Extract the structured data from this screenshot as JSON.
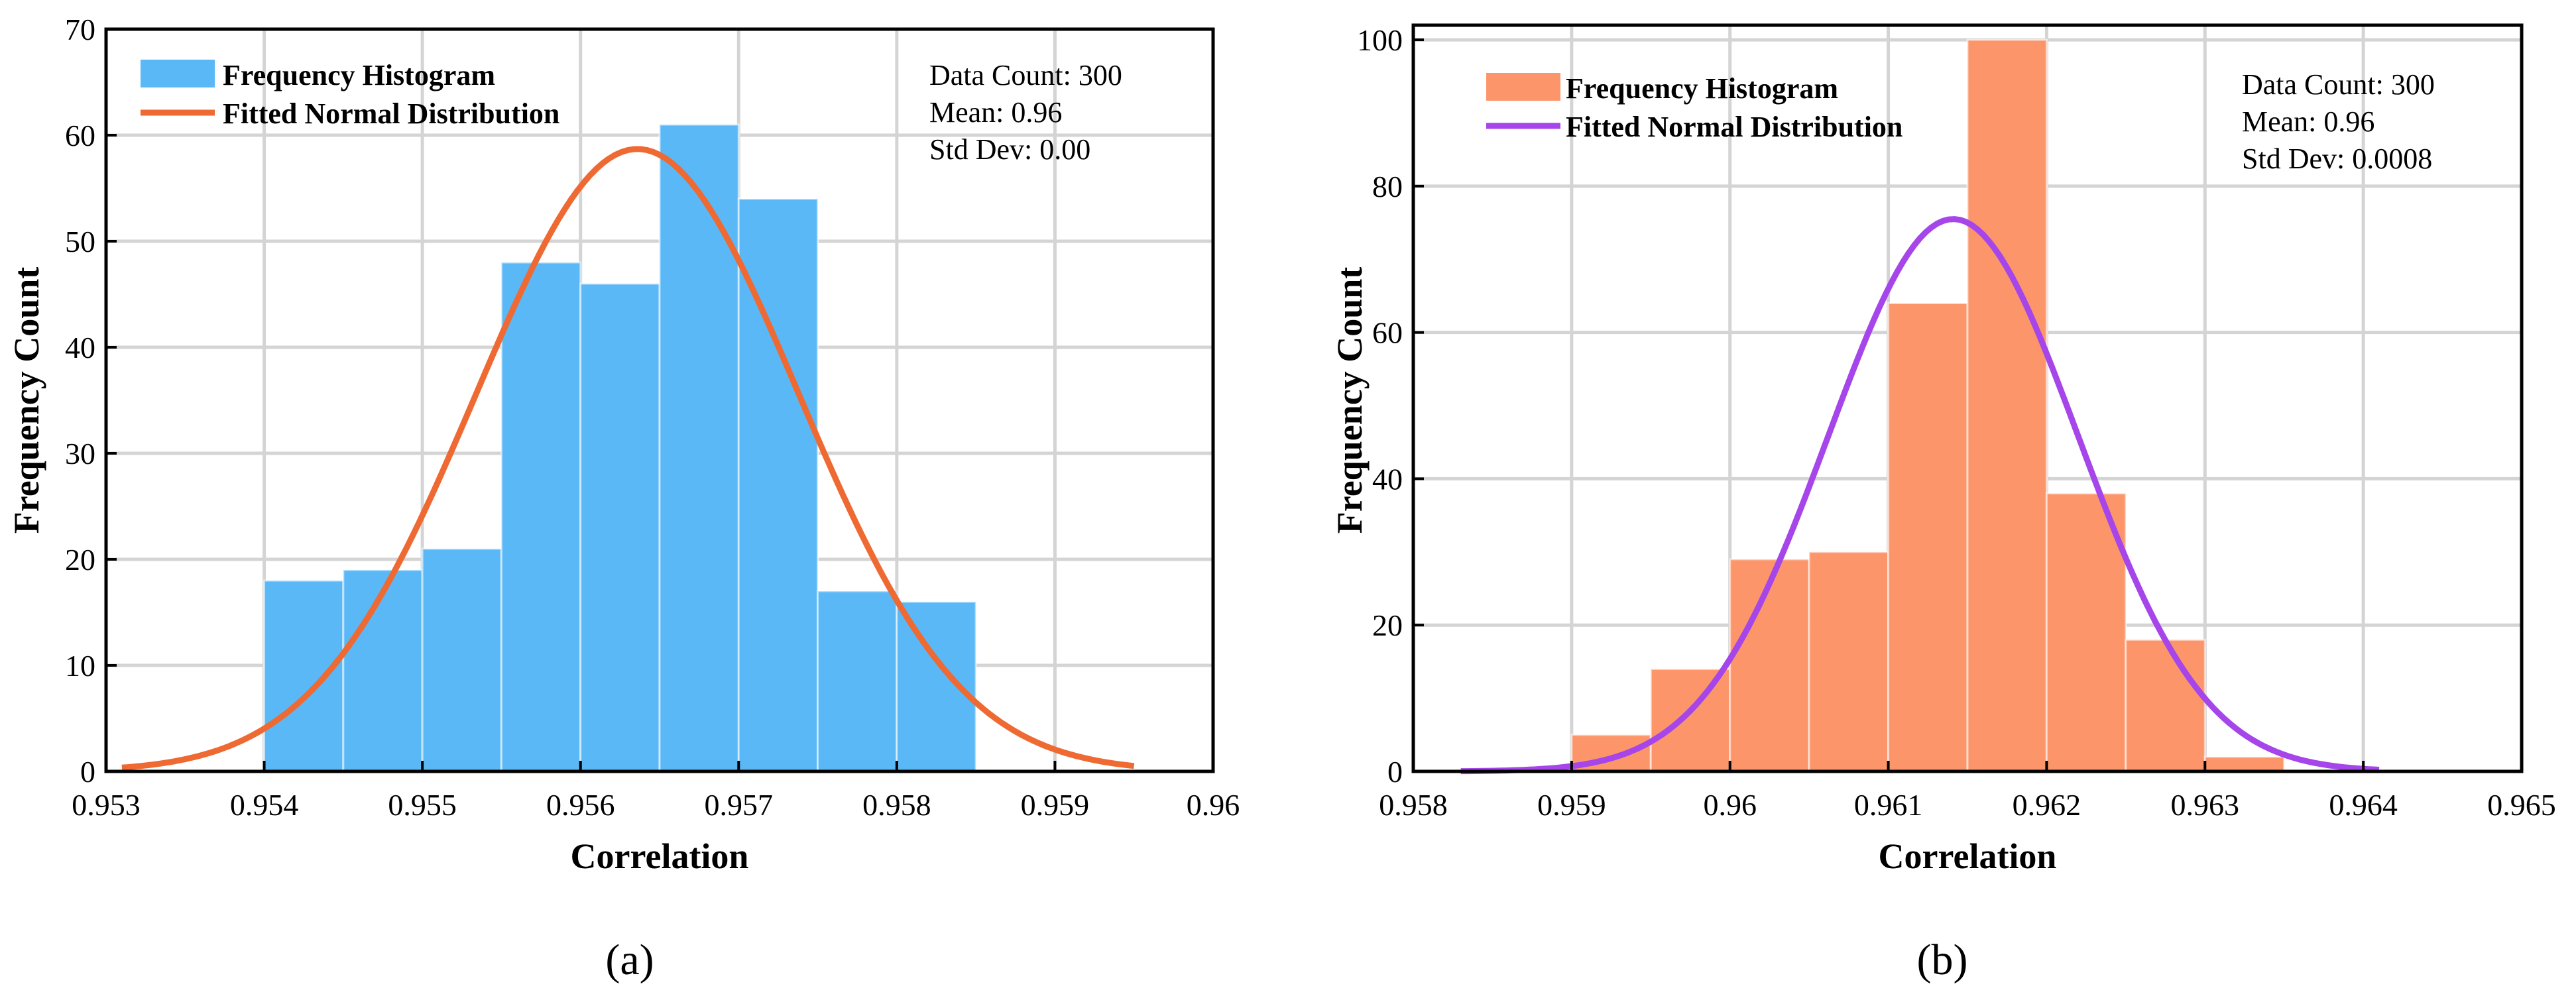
{
  "chart_data": [
    {
      "type": "bar",
      "caption": "(a)",
      "xlabel": "Correlation",
      "ylabel": "Frequency Count",
      "xlim": [
        0.953,
        0.96
      ],
      "ylim": [
        0,
        70
      ],
      "xticks": [
        0.953,
        0.954,
        0.955,
        0.956,
        0.957,
        0.958,
        0.959,
        0.96
      ],
      "xtick_labels": [
        "0.953",
        "0.954",
        "0.955",
        "0.956",
        "0.957",
        "0.958",
        "0.959",
        "0.96"
      ],
      "yticks": [
        0,
        10,
        20,
        30,
        40,
        50,
        60,
        70
      ],
      "ytick_labels": [
        "0",
        "10",
        "20",
        "30",
        "40",
        "50",
        "60",
        "70"
      ],
      "grid": true,
      "legend": [
        "Frequency Histogram",
        "Fitted Normal Distribution"
      ],
      "legend_position": "top-left",
      "stats_lines": [
        "Data Count: 300",
        "Mean: 0.96",
        "Std Dev: 0.00"
      ],
      "bins": [
        {
          "start": 0.954,
          "end": 0.9545,
          "count": 18
        },
        {
          "start": 0.9545,
          "end": 0.955,
          "count": 19
        },
        {
          "start": 0.955,
          "end": 0.9555,
          "count": 21
        },
        {
          "start": 0.9555,
          "end": 0.956,
          "count": 48
        },
        {
          "start": 0.956,
          "end": 0.9565,
          "count": 46
        },
        {
          "start": 0.9565,
          "end": 0.957,
          "count": 61
        },
        {
          "start": 0.957,
          "end": 0.9575,
          "count": 54
        },
        {
          "start": 0.9575,
          "end": 0.958,
          "count": 17
        },
        {
          "start": 0.958,
          "end": 0.9585,
          "count": 16
        }
      ],
      "fit": {
        "type": "normal",
        "mean": 0.95636,
        "std": 0.00102,
        "peak": 58.7,
        "x_range": [
          0.9531,
          0.9595
        ]
      },
      "bar_color": "#5ab8f7",
      "line_color": "#ee6a32"
    },
    {
      "type": "bar",
      "caption": "(b)",
      "xlabel": "Correlation",
      "ylabel": "Frequency Count",
      "xlim": [
        0.958,
        0.965
      ],
      "ylim": [
        0,
        102
      ],
      "xticks": [
        0.958,
        0.959,
        0.96,
        0.961,
        0.962,
        0.963,
        0.964,
        0.965
      ],
      "xtick_labels": [
        "0.958",
        "0.959",
        "0.96",
        "0.961",
        "0.962",
        "0.963",
        "0.964",
        "0.965"
      ],
      "yticks": [
        0,
        20,
        40,
        60,
        80,
        100
      ],
      "ytick_labels": [
        "0",
        "20",
        "40",
        "60",
        "80",
        "100"
      ],
      "grid": true,
      "legend": [
        "Frequency Histogram",
        "Fitted Normal Distribution"
      ],
      "legend_position": "top-left",
      "stats_lines": [
        "Data Count: 300",
        "Mean: 0.96",
        "Std Dev: 0.0008"
      ],
      "bins": [
        {
          "start": 0.959,
          "end": 0.9595,
          "count": 5
        },
        {
          "start": 0.9595,
          "end": 0.96,
          "count": 14
        },
        {
          "start": 0.96,
          "end": 0.9605,
          "count": 29
        },
        {
          "start": 0.9605,
          "end": 0.961,
          "count": 30
        },
        {
          "start": 0.961,
          "end": 0.9615,
          "count": 64
        },
        {
          "start": 0.9615,
          "end": 0.962,
          "count": 100
        },
        {
          "start": 0.962,
          "end": 0.9625,
          "count": 38
        },
        {
          "start": 0.9625,
          "end": 0.963,
          "count": 18
        },
        {
          "start": 0.963,
          "end": 0.9635,
          "count": 2
        }
      ],
      "fit": {
        "type": "normal",
        "mean": 0.96141,
        "std": 0.00079,
        "peak": 75.5,
        "x_range": [
          0.9583,
          0.9641
        ]
      },
      "bar_color": "#fc966a",
      "line_color": "#a545ea"
    }
  ]
}
